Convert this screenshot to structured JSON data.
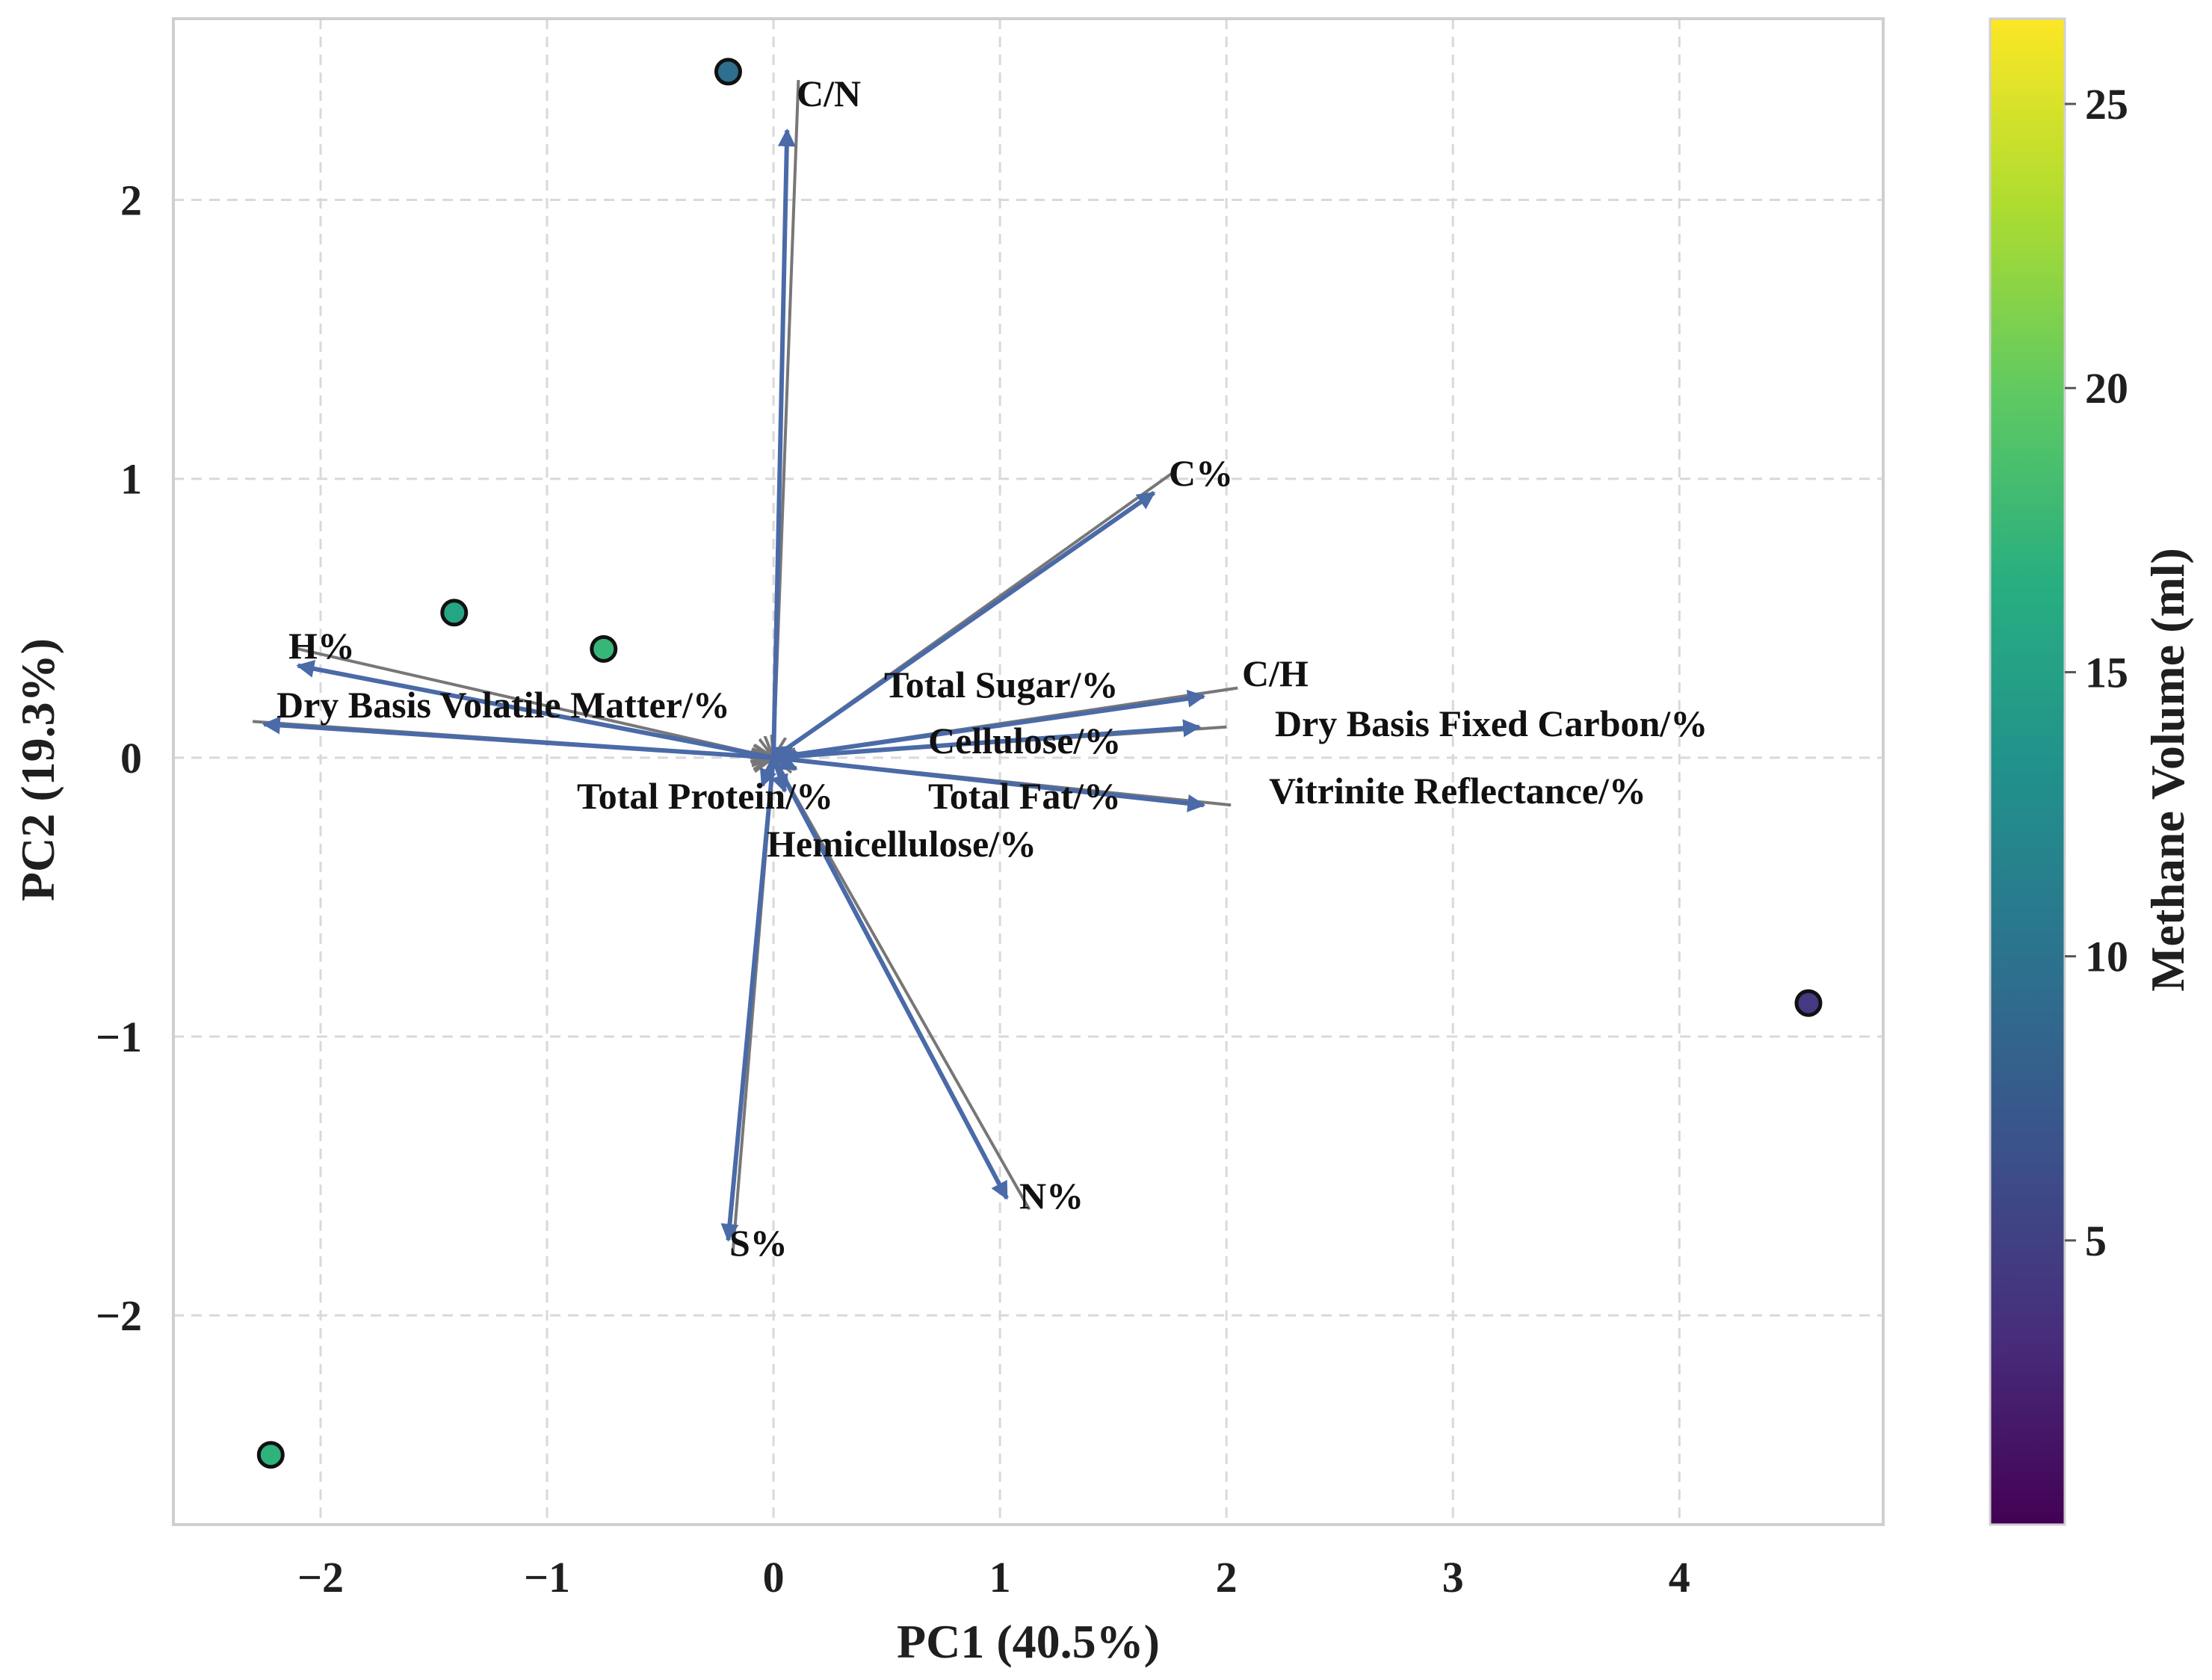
{
  "chart_data": {
    "type": "scatter",
    "subtype": "pca-biplot",
    "xlabel": "PC1 (40.5%)",
    "ylabel": "PC2 (19.3%)",
    "xlim": [
      -2.65,
      4.9
    ],
    "ylim": [
      -2.75,
      2.65
    ],
    "x_ticks": [
      -2,
      -1,
      0,
      1,
      2,
      3,
      4
    ],
    "y_ticks": [
      -2,
      -1,
      0,
      1,
      2
    ],
    "x_tick_labels": [
      "−2",
      "−1",
      "0",
      "1",
      "2",
      "3",
      "4"
    ],
    "y_tick_labels": [
      "−2",
      "−1",
      "0",
      "1",
      "2"
    ],
    "grid": true,
    "points": [
      {
        "x": -0.2,
        "y": 2.46,
        "methane": 9.5
      },
      {
        "x": -1.41,
        "y": 0.52,
        "methane": 15.5
      },
      {
        "x": -0.75,
        "y": 0.39,
        "methane": 17.5
      },
      {
        "x": -2.22,
        "y": -2.5,
        "methane": 17.0
      },
      {
        "x": 4.57,
        "y": -0.88,
        "methane": 4.5
      }
    ],
    "loadings": [
      {
        "name": "C/N",
        "x": 0.06,
        "y": 2.25,
        "label": "C/N",
        "lx": 0.11,
        "ly": 2.43
      },
      {
        "name": "C%",
        "x": 1.68,
        "y": 0.95,
        "label": "C%",
        "lx": 1.76,
        "ly": 1.02
      },
      {
        "name": "H%",
        "x": -2.1,
        "y": 0.33,
        "label": "H%",
        "lx": -2.1,
        "ly": 0.39
      },
      {
        "name": "Dry Basis Volatile Matter/%",
        "x": -2.25,
        "y": 0.12,
        "label": "Dry Basis Volatile Matter/%",
        "lx": -2.3,
        "ly": 0.13
      },
      {
        "name": "C/H",
        "x": 1.9,
        "y": 0.22,
        "label": "C/H",
        "lx": 2.05,
        "ly": 0.25
      },
      {
        "name": "Dry Basis Fixed Carbon/%",
        "x": 1.88,
        "y": 0.11,
        "label": "Dry Basis Fixed Carbon/%",
        "lx": 2.0,
        "ly": 0.11
      },
      {
        "name": "Cellulose/%",
        "x": 0.1,
        "y": 0.02,
        "label": "Cellulose/%",
        "lx": 0.07,
        "ly": 0.01
      },
      {
        "name": "Total Sugar/%",
        "x": 0.08,
        "y": 0.04,
        "label": "Total Sugar/%",
        "lx": 0.03,
        "ly": 0.02
      },
      {
        "name": "Total Fat/%",
        "x": 0.1,
        "y": -0.04,
        "label": "Total Fat/%",
        "lx": 0.05,
        "ly": -0.02
      },
      {
        "name": "Total Protein/%",
        "x": -0.05,
        "y": -0.1,
        "label": "Total Protein/%",
        "lx": -0.04,
        "ly": -0.06
      },
      {
        "name": "Hemicellulose/%",
        "x": 0.05,
        "y": -0.12,
        "label": "Hemicellulose/%",
        "lx": 0.06,
        "ly": -0.08
      },
      {
        "name": "Vitrinite Reflectance/%",
        "x": 1.9,
        "y": -0.17,
        "label": "Vitrinite Reflectance/%",
        "lx": 2.02,
        "ly": -0.17
      },
      {
        "name": "N%",
        "x": 1.03,
        "y": -1.58,
        "label": "N%",
        "lx": 1.13,
        "ly": -1.62
      },
      {
        "name": "S%",
        "x": -0.2,
        "y": -1.73,
        "label": "S%",
        "lx": -0.18,
        "ly": -1.78
      }
    ],
    "colorbar": {
      "label": "Methane Volume (ml)",
      "min": 0,
      "max": 26.5,
      "ticks": [
        5,
        10,
        15,
        20,
        25
      ],
      "tick_labels": [
        "5",
        "10",
        "15",
        "20",
        "25"
      ],
      "colormap": "viridis"
    },
    "colors": {
      "arrow": "#4a6aa8",
      "label_arrow": "#777777",
      "grid": "#d9d9d9",
      "frame": "#cfcfcf"
    }
  }
}
